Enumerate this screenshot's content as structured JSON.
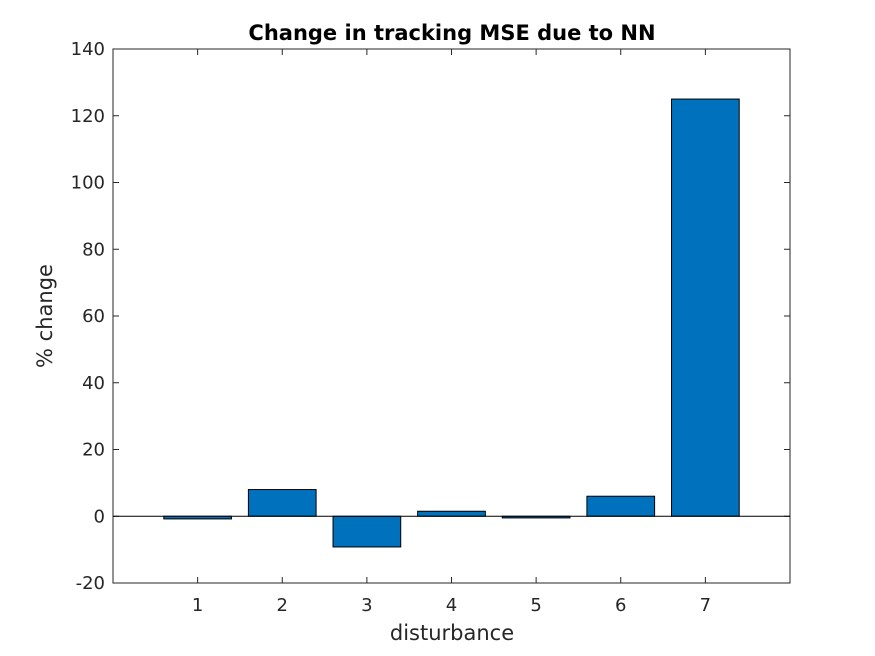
{
  "chart_data": {
    "type": "bar",
    "title": "Change in tracking MSE due to NN",
    "xlabel": "disturbance",
    "ylabel": "% change",
    "categories": [
      "1",
      "2",
      "3",
      "4",
      "5",
      "6",
      "7"
    ],
    "values": [
      -0.8,
      8,
      -9.2,
      1.5,
      -0.5,
      6,
      125
    ],
    "xlim": [
      0,
      8
    ],
    "ylim": [
      -20,
      140
    ],
    "yticks": [
      -20,
      0,
      20,
      40,
      60,
      80,
      100,
      120,
      140
    ],
    "grid": false,
    "legend": "none",
    "bar_color": "#0072BD",
    "bar_edge_color": "#000000",
    "zero_line": true
  }
}
